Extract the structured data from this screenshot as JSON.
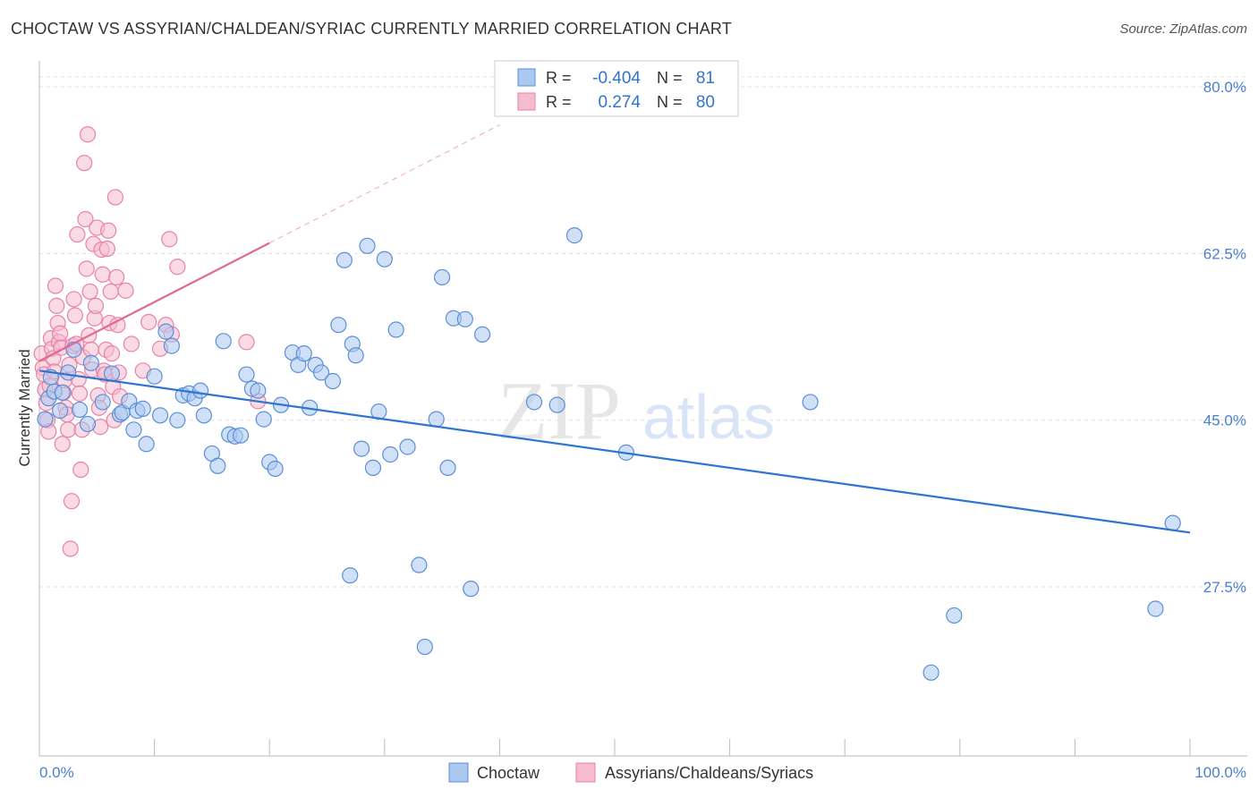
{
  "chart_data": {
    "type": "scatter",
    "title": "CHOCTAW VS ASSYRIAN/CHALDEAN/SYRIAC CURRENTLY MARRIED CORRELATION CHART",
    "source": "Source: ZipAtlas.com",
    "ylabel": "Currently Married",
    "xlabel": "",
    "xlim": [
      0,
      100
    ],
    "ylim": [
      10,
      82
    ],
    "x_tick_labels": [
      "0.0%",
      "100.0%"
    ],
    "y_ticks": [
      {
        "value": 80,
        "label": "80.0%"
      },
      {
        "value": 62.5,
        "label": "62.5%"
      },
      {
        "value": 45,
        "label": "45.0%"
      },
      {
        "value": 27.5,
        "label": "27.5%"
      }
    ],
    "grid": true,
    "watermark": {
      "zip": "ZIP",
      "atlas": "atlas"
    },
    "legend_top": [
      {
        "r_label": "R =",
        "r_value": "-0.404",
        "n_label": "N =",
        "n_value": "81"
      },
      {
        "r_label": "R =",
        "r_value": "0.274",
        "n_label": "N =",
        "n_value": "80"
      }
    ],
    "legend_bottom": [
      "Choctaw",
      "Assyrians/Chaldeans/Syriacs"
    ],
    "colors": {
      "blue_fill": "#aac8f0",
      "blue_stroke": "#5b8fd6",
      "blue_line": "#2f74d0",
      "pink_fill": "#f5bcd0",
      "pink_stroke": "#e882a6",
      "pink_line": "#e06a92",
      "tick_label": "#4a7fd0"
    },
    "series": [
      {
        "name": "Choctaw",
        "trend": {
          "x0": 0,
          "y0": 50.2,
          "x1": 100,
          "y1": 33.2
        },
        "points": [
          [
            0.5,
            45.1
          ],
          [
            0.8,
            47.3
          ],
          [
            1.0,
            49.5
          ],
          [
            1.3,
            48.0
          ],
          [
            1.8,
            46.0
          ],
          [
            2.0,
            47.9
          ],
          [
            2.5,
            50.0
          ],
          [
            3.0,
            52.4
          ],
          [
            3.5,
            46.1
          ],
          [
            4.2,
            44.6
          ],
          [
            4.5,
            51.0
          ],
          [
            5.5,
            46.9
          ],
          [
            6.3,
            49.9
          ],
          [
            7.0,
            45.6
          ],
          [
            7.2,
            45.8
          ],
          [
            7.8,
            47.0
          ],
          [
            8.2,
            44.0
          ],
          [
            8.5,
            46.0
          ],
          [
            9.0,
            46.2
          ],
          [
            9.3,
            42.5
          ],
          [
            10.0,
            49.6
          ],
          [
            10.5,
            45.5
          ],
          [
            11.0,
            54.3
          ],
          [
            11.5,
            52.8
          ],
          [
            12.0,
            45.0
          ],
          [
            12.5,
            47.6
          ],
          [
            13.0,
            47.8
          ],
          [
            13.5,
            47.3
          ],
          [
            14.0,
            48.1
          ],
          [
            14.3,
            45.5
          ],
          [
            15.0,
            41.5
          ],
          [
            15.5,
            40.2
          ],
          [
            16.0,
            53.3
          ],
          [
            16.5,
            43.5
          ],
          [
            17.0,
            43.3
          ],
          [
            17.5,
            43.4
          ],
          [
            18.0,
            49.8
          ],
          [
            18.5,
            48.3
          ],
          [
            19.0,
            48.1
          ],
          [
            19.5,
            45.1
          ],
          [
            20.0,
            40.6
          ],
          [
            20.5,
            39.9
          ],
          [
            21.0,
            46.6
          ],
          [
            22.0,
            52.1
          ],
          [
            22.5,
            50.8
          ],
          [
            23.0,
            52.0
          ],
          [
            23.5,
            46.3
          ],
          [
            24.0,
            50.8
          ],
          [
            24.5,
            50.0
          ],
          [
            25.5,
            49.1
          ],
          [
            26.0,
            55.0
          ],
          [
            26.5,
            61.8
          ],
          [
            27.0,
            28.7
          ],
          [
            27.2,
            53.0
          ],
          [
            27.5,
            51.8
          ],
          [
            28.0,
            42.0
          ],
          [
            28.5,
            63.3
          ],
          [
            29.0,
            40.0
          ],
          [
            29.5,
            45.9
          ],
          [
            30.0,
            61.9
          ],
          [
            30.5,
            41.4
          ],
          [
            31.0,
            54.5
          ],
          [
            32.0,
            42.2
          ],
          [
            33.0,
            29.8
          ],
          [
            33.5,
            21.2
          ],
          [
            34.5,
            45.1
          ],
          [
            35.0,
            60.0
          ],
          [
            35.5,
            40.0
          ],
          [
            36.0,
            55.7
          ],
          [
            37.0,
            55.6
          ],
          [
            37.5,
            27.3
          ],
          [
            38.5,
            54.0
          ],
          [
            43.0,
            46.9
          ],
          [
            45.0,
            46.6
          ],
          [
            46.5,
            64.4
          ],
          [
            51.0,
            41.6
          ],
          [
            67.0,
            46.9
          ],
          [
            77.5,
            18.5
          ],
          [
            79.5,
            24.5
          ],
          [
            97.0,
            25.2
          ],
          [
            98.5,
            34.2
          ]
        ]
      },
      {
        "name": "Assyrians/Chaldeans/Syriacs",
        "trend": {
          "x0": 0,
          "y0": 51.2,
          "x1": 20,
          "y1": 63.6
        },
        "points": [
          [
            0.2,
            52.0
          ],
          [
            0.3,
            50.5
          ],
          [
            0.4,
            49.8
          ],
          [
            0.5,
            48.2
          ],
          [
            0.6,
            46.8
          ],
          [
            0.7,
            45.0
          ],
          [
            0.8,
            43.8
          ],
          [
            0.9,
            48.6
          ],
          [
            1.0,
            53.6
          ],
          [
            1.1,
            52.5
          ],
          [
            1.2,
            51.5
          ],
          [
            1.3,
            50.1
          ],
          [
            1.4,
            59.1
          ],
          [
            1.5,
            57.0
          ],
          [
            1.6,
            55.2
          ],
          [
            1.7,
            53.2
          ],
          [
            1.8,
            54.1
          ],
          [
            1.9,
            52.6
          ],
          [
            2.0,
            42.5
          ],
          [
            2.1,
            47.9
          ],
          [
            2.2,
            49.2
          ],
          [
            2.3,
            46.3
          ],
          [
            2.4,
            45.6
          ],
          [
            2.5,
            44.0
          ],
          [
            2.6,
            50.8
          ],
          [
            2.7,
            31.5
          ],
          [
            2.8,
            36.5
          ],
          [
            2.9,
            52.8
          ],
          [
            3.0,
            57.7
          ],
          [
            3.1,
            56.0
          ],
          [
            3.2,
            53.0
          ],
          [
            3.3,
            64.5
          ],
          [
            3.4,
            49.3
          ],
          [
            3.5,
            47.8
          ],
          [
            3.6,
            39.8
          ],
          [
            3.7,
            44.0
          ],
          [
            3.8,
            51.6
          ],
          [
            3.9,
            72.0
          ],
          [
            4.0,
            66.1
          ],
          [
            4.1,
            60.9
          ],
          [
            4.2,
            75.0
          ],
          [
            4.3,
            53.9
          ],
          [
            4.4,
            58.5
          ],
          [
            4.5,
            52.4
          ],
          [
            4.6,
            50.3
          ],
          [
            4.7,
            63.5
          ],
          [
            4.8,
            55.7
          ],
          [
            4.9,
            57.0
          ],
          [
            5.0,
            65.2
          ],
          [
            5.1,
            47.6
          ],
          [
            5.2,
            46.3
          ],
          [
            5.3,
            44.3
          ],
          [
            5.4,
            62.9
          ],
          [
            5.5,
            60.3
          ],
          [
            5.6,
            50.2
          ],
          [
            5.7,
            49.8
          ],
          [
            5.8,
            52.4
          ],
          [
            5.9,
            63.0
          ],
          [
            6.0,
            64.9
          ],
          [
            6.1,
            55.2
          ],
          [
            6.2,
            58.5
          ],
          [
            6.3,
            52.0
          ],
          [
            6.4,
            48.5
          ],
          [
            6.5,
            45.0
          ],
          [
            6.6,
            68.4
          ],
          [
            6.7,
            60.0
          ],
          [
            6.8,
            55.0
          ],
          [
            6.9,
            50.0
          ],
          [
            7.0,
            47.5
          ],
          [
            7.5,
            58.6
          ],
          [
            8.0,
            53.0
          ],
          [
            9.0,
            50.2
          ],
          [
            9.5,
            55.3
          ],
          [
            10.5,
            52.5
          ],
          [
            11.0,
            55.0
          ],
          [
            11.3,
            64.0
          ],
          [
            11.5,
            54.0
          ],
          [
            12.0,
            61.1
          ],
          [
            18.0,
            53.2
          ],
          [
            19.0,
            47.0
          ]
        ]
      }
    ]
  }
}
